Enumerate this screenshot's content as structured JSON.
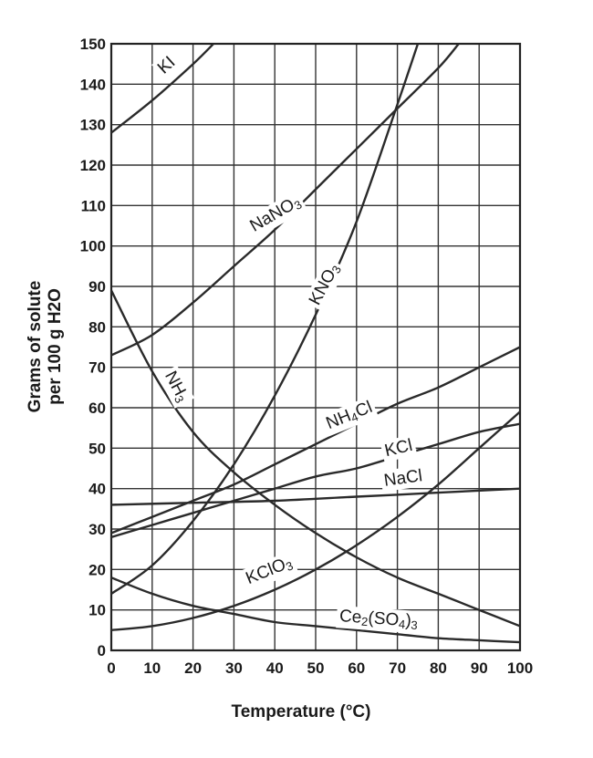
{
  "chart_data": {
    "type": "line",
    "xlabel": "Temperature (°C)",
    "ylabel_line1": "Grams of solute",
    "ylabel_line2": "per 100 g H2O",
    "xlim": [
      0,
      100
    ],
    "ylim": [
      0,
      150
    ],
    "xticks": [
      0,
      10,
      20,
      30,
      40,
      50,
      60,
      70,
      80,
      90,
      100
    ],
    "yticks": [
      0,
      10,
      20,
      30,
      40,
      50,
      60,
      70,
      80,
      90,
      100,
      110,
      120,
      130,
      140,
      150
    ],
    "grid": true,
    "series": [
      {
        "name": "KI",
        "label_parts": [
          [
            "KI",
            ""
          ]
        ],
        "x": [
          0,
          10,
          20,
          25
        ],
        "y": [
          128,
          136,
          145,
          150
        ]
      },
      {
        "name": "NaNO3",
        "label_parts": [
          [
            "NaNO",
            ""
          ],
          [
            "3",
            "sub"
          ]
        ],
        "x": [
          0,
          10,
          20,
          30,
          40,
          50,
          60,
          70,
          80,
          85
        ],
        "y": [
          73,
          78,
          86,
          95,
          104,
          114,
          124,
          134,
          144,
          150
        ]
      },
      {
        "name": "KNO3",
        "label_parts": [
          [
            "KNO",
            ""
          ],
          [
            "3",
            "sub"
          ]
        ],
        "x": [
          0,
          10,
          20,
          30,
          40,
          50,
          60,
          70,
          75
        ],
        "y": [
          14,
          21,
          32,
          46,
          63,
          83,
          106,
          135,
          150
        ]
      },
      {
        "name": "NH3",
        "label_parts": [
          [
            "NH",
            ""
          ],
          [
            "3",
            "sub"
          ]
        ],
        "x": [
          0,
          10,
          20,
          30,
          40,
          50,
          60,
          70,
          80,
          90,
          100
        ],
        "y": [
          89,
          69,
          54,
          44,
          36,
          29,
          23,
          18,
          14,
          10,
          6
        ]
      },
      {
        "name": "NH4Cl",
        "label_parts": [
          [
            "NH",
            ""
          ],
          [
            "4",
            "sub"
          ],
          [
            "Cl",
            ""
          ]
        ],
        "x": [
          0,
          10,
          20,
          30,
          40,
          50,
          60,
          70,
          80,
          90,
          100
        ],
        "y": [
          29,
          33,
          37,
          41,
          46,
          51,
          56,
          61,
          65,
          70,
          75
        ]
      },
      {
        "name": "KCl",
        "label_parts": [
          [
            "KCl",
            ""
          ]
        ],
        "x": [
          0,
          10,
          20,
          30,
          40,
          50,
          60,
          70,
          80,
          90,
          100
        ],
        "y": [
          28,
          31,
          34,
          37,
          40,
          43,
          45,
          48,
          51,
          54,
          56
        ]
      },
      {
        "name": "NaCl",
        "label_parts": [
          [
            "NaCl",
            ""
          ]
        ],
        "x": [
          0,
          20,
          40,
          60,
          80,
          100
        ],
        "y": [
          36,
          36.5,
          37,
          38,
          39,
          40
        ]
      },
      {
        "name": "KClO3",
        "label_parts": [
          [
            "KClO",
            ""
          ],
          [
            "3",
            "sub"
          ]
        ],
        "x": [
          0,
          10,
          20,
          30,
          40,
          50,
          60,
          70,
          80,
          90,
          100
        ],
        "y": [
          5,
          6,
          8,
          11,
          15,
          20,
          26,
          33,
          41,
          50,
          59
        ]
      },
      {
        "name": "Ce2(SO4)3",
        "label_parts": [
          [
            "Ce",
            ""
          ],
          [
            "2",
            "sub"
          ],
          [
            "(SO",
            ""
          ],
          [
            "4",
            "sub"
          ],
          [
            ")",
            ""
          ],
          [
            "3",
            "sub"
          ]
        ],
        "x": [
          0,
          10,
          20,
          30,
          40,
          50,
          60,
          70,
          80,
          90,
          100
        ],
        "y": [
          18,
          14,
          11,
          9,
          7,
          6,
          5,
          4,
          3,
          2.5,
          2
        ]
      }
    ]
  }
}
